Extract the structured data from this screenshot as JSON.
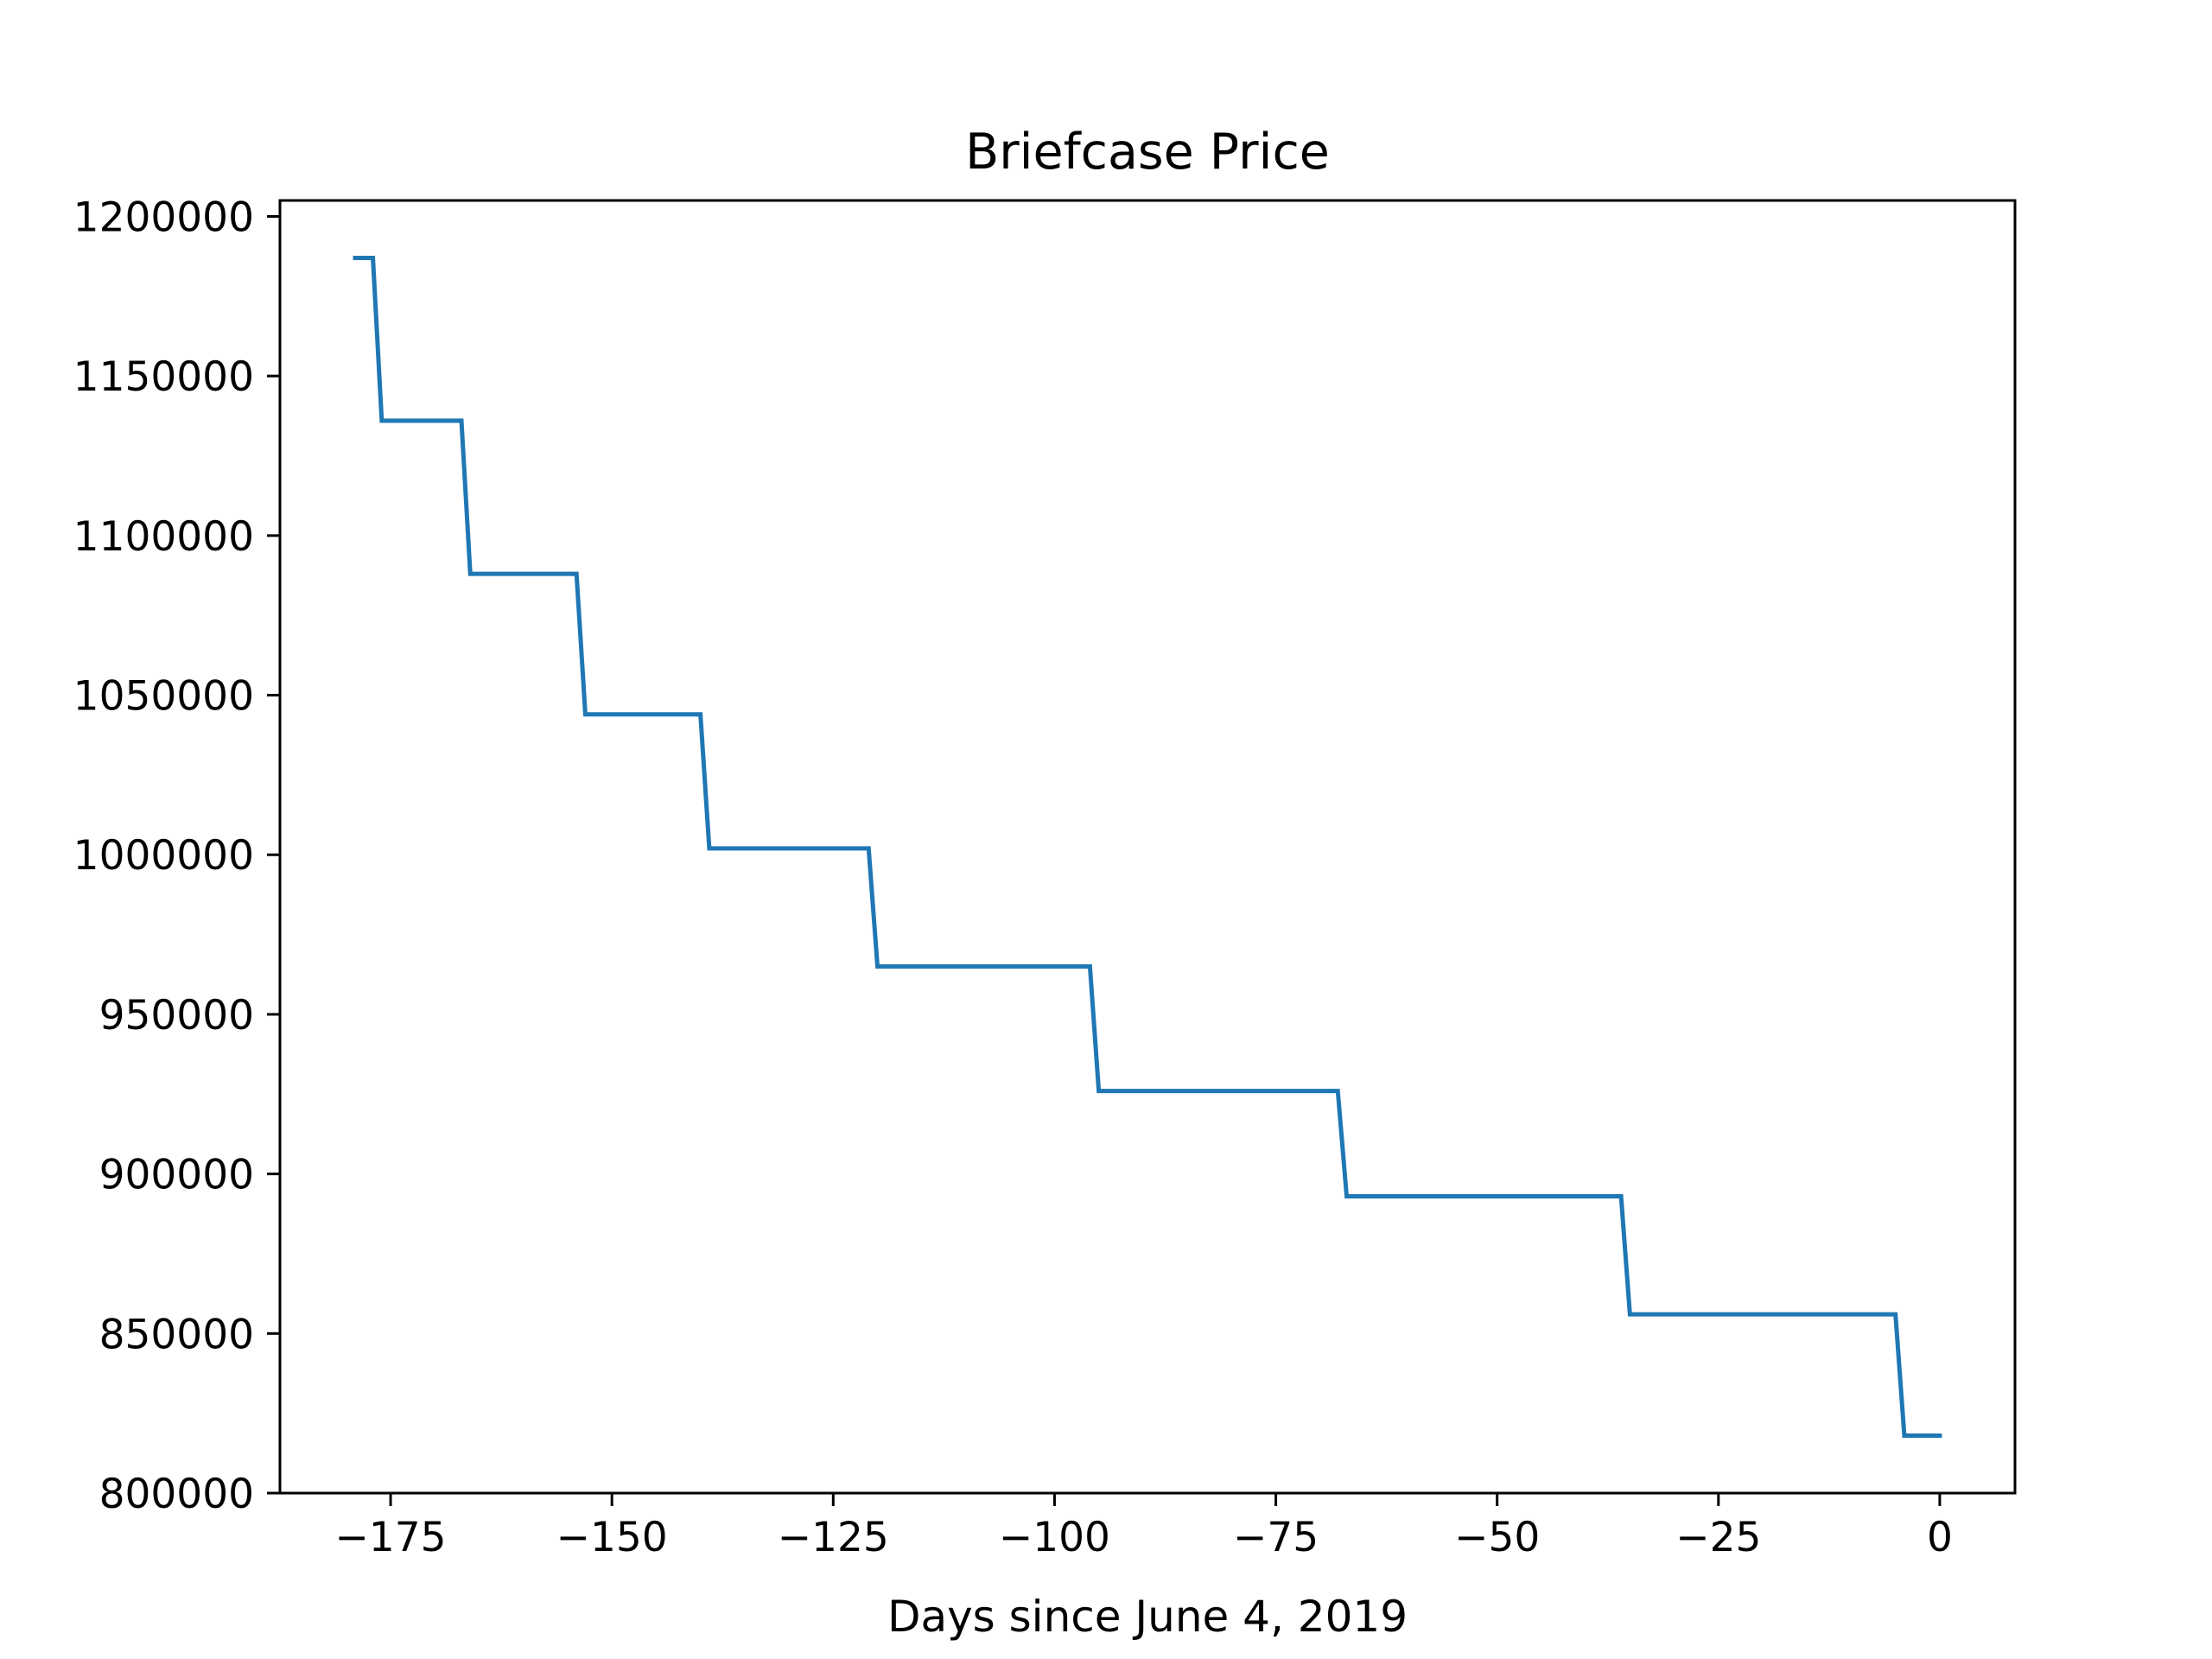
{
  "chart_data": {
    "type": "line",
    "title": "Briefcase Price",
    "xlabel": "Days since June 4, 2019",
    "ylabel": "",
    "xlim": [
      -187.5,
      8.5
    ],
    "ylim": [
      800000,
      1205000
    ],
    "xticks": [
      -175,
      -150,
      -125,
      -100,
      -75,
      -50,
      -25,
      0
    ],
    "xtick_labels": [
      "−175",
      "−150",
      "−125",
      "−100",
      "−75",
      "−50",
      "−25",
      "0"
    ],
    "yticks": [
      800000,
      850000,
      900000,
      950000,
      1000000,
      1050000,
      1100000,
      1150000,
      1200000
    ],
    "ytick_labels": [
      "800000",
      "850000",
      "900000",
      "950000",
      "1000000",
      "1050000",
      "1100000",
      "1150000",
      "1200000"
    ],
    "grid": false,
    "legend": "none",
    "series": [
      {
        "color": "#1f77b4",
        "x": [
          -179,
          -177,
          -176,
          -167,
          -166,
          -154,
          -153,
          -140,
          -139,
          -121,
          -120,
          -96,
          -95,
          -68,
          -67,
          -36,
          -35,
          -5,
          -4,
          0
        ],
        "y": [
          1187000,
          1187000,
          1136000,
          1136000,
          1088000,
          1088000,
          1044000,
          1044000,
          1002000,
          1002000,
          965000,
          965000,
          926000,
          926000,
          893000,
          893000,
          856000,
          856000,
          818000,
          818000
        ]
      }
    ]
  }
}
